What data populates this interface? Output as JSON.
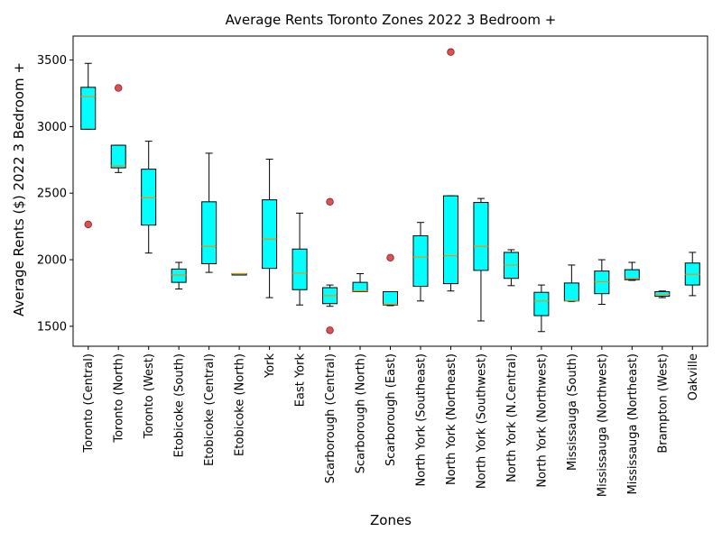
{
  "chart_data": {
    "type": "boxplot",
    "title": "Average Rents Toronto Zones 2022 3 Bedroom +",
    "xlabel": "Zones",
    "ylabel": "Average Rents ($) 2022 3 Bedroom +",
    "ylim": [
      1350,
      3680
    ],
    "yticks": [
      1500,
      2000,
      2500,
      3000,
      3500
    ],
    "grid": false,
    "colors": {
      "box_fill": "#00ffff",
      "median": "#ff8c00",
      "outlier_fill": "#e05050"
    },
    "categories": [
      "Toronto (Central)",
      "Toronto (North)",
      "Toronto (West)",
      "Etobicoke (South)",
      "Etobicoke (Central)",
      "Etobicoke (North)",
      "York",
      "East York",
      "Scarborough (Central)",
      "Scarborough (North)",
      "Scarborough (East)",
      "North York (Southeast)",
      "North York (Northeast)",
      "North York (Southwest)",
      "North York (N.Central)",
      "North York (Northwest)",
      "Mississauga (South)",
      "Mississauga (Northwest)",
      "Mississauga (Northeast)",
      "Brampton (West)",
      "Oakville"
    ],
    "boxes": [
      {
        "whislo": 2980,
        "q1": 2980,
        "med": 3225,
        "q3": 3295,
        "whishi": 3475,
        "fliers": [
          2265
        ]
      },
      {
        "whislo": 2655,
        "q1": 2690,
        "med": 2705,
        "q3": 2860,
        "whishi": 2860,
        "fliers": [
          3290
        ]
      },
      {
        "whislo": 2050,
        "q1": 2260,
        "med": 2465,
        "q3": 2680,
        "whishi": 2890,
        "fliers": []
      },
      {
        "whislo": 1780,
        "q1": 1830,
        "med": 1885,
        "q3": 1930,
        "whishi": 1980,
        "fliers": []
      },
      {
        "whislo": 1905,
        "q1": 1970,
        "med": 2100,
        "q3": 2435,
        "whishi": 2800,
        "fliers": []
      },
      {
        "whislo": 1895,
        "q1": 1895,
        "med": 1895,
        "q3": 1895,
        "whishi": 1895,
        "fliers": []
      },
      {
        "whislo": 1715,
        "q1": 1935,
        "med": 2155,
        "q3": 2450,
        "whishi": 2755,
        "fliers": []
      },
      {
        "whislo": 1660,
        "q1": 1775,
        "med": 1900,
        "q3": 2080,
        "whishi": 2350,
        "fliers": []
      },
      {
        "whislo": 1650,
        "q1": 1670,
        "med": 1730,
        "q3": 1790,
        "whishi": 1810,
        "fliers": [
          2435,
          1470
        ]
      },
      {
        "whislo": 1760,
        "q1": 1760,
        "med": 1765,
        "q3": 1830,
        "whishi": 1895,
        "fliers": []
      },
      {
        "whislo": 1655,
        "q1": 1660,
        "med": 1665,
        "q3": 1760,
        "whishi": 1760,
        "fliers": [
          2015
        ]
      },
      {
        "whislo": 1690,
        "q1": 1800,
        "med": 2020,
        "q3": 2180,
        "whishi": 2280,
        "fliers": []
      },
      {
        "whislo": 1765,
        "q1": 1820,
        "med": 2030,
        "q3": 2480,
        "whishi": 2480,
        "fliers": [
          3560
        ]
      },
      {
        "whislo": 1540,
        "q1": 1920,
        "med": 2100,
        "q3": 2430,
        "whishi": 2460,
        "fliers": []
      },
      {
        "whislo": 1805,
        "q1": 1860,
        "med": 1960,
        "q3": 2055,
        "whishi": 2075,
        "fliers": []
      },
      {
        "whislo": 1460,
        "q1": 1580,
        "med": 1690,
        "q3": 1755,
        "whishi": 1810,
        "fliers": []
      },
      {
        "whislo": 1685,
        "q1": 1690,
        "med": 1690,
        "q3": 1825,
        "whishi": 1960,
        "fliers": []
      },
      {
        "whislo": 1665,
        "q1": 1745,
        "med": 1835,
        "q3": 1915,
        "whishi": 2000,
        "fliers": []
      },
      {
        "whislo": 1845,
        "q1": 1850,
        "med": 1860,
        "q3": 1925,
        "whishi": 1980,
        "fliers": []
      },
      {
        "whislo": 1715,
        "q1": 1725,
        "med": 1740,
        "q3": 1760,
        "whishi": 1765,
        "fliers": []
      },
      {
        "whislo": 1730,
        "q1": 1810,
        "med": 1890,
        "q3": 1975,
        "whishi": 2055,
        "fliers": []
      }
    ]
  }
}
